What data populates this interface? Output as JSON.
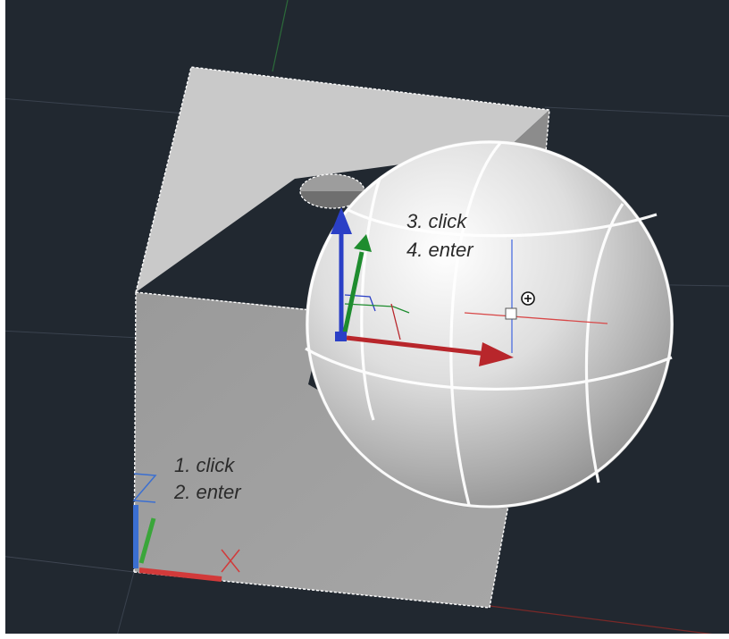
{
  "viewport": {
    "background": "#212830",
    "grid_color": "#3a424e",
    "y_axis_color": "#2c6b3a",
    "x_axis_color": "#7a2828"
  },
  "annotations": {
    "step1": "1. click",
    "step2": "2. enter",
    "step3": "3. click",
    "step4": "4. enter"
  },
  "ucs_icon": {
    "x_label": "X",
    "z_label": "Z",
    "x_color": "#d23a3a",
    "y_color": "#3aa63a",
    "z_color": "#3b6fd1"
  },
  "gizmo": {
    "x_color": "#b8262b",
    "y_color": "#1e8c2e",
    "z_color": "#2a3fc6"
  },
  "icons": {
    "cursor": "crosshair-pickbox-icon",
    "pointer": "pan-cursor-icon"
  }
}
